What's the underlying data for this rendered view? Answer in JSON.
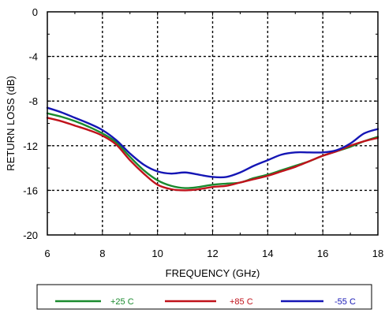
{
  "chart_data": {
    "type": "line",
    "title": "",
    "xlabel": "FREQUENCY (GHz)",
    "ylabel": "RETURN LOSS (dB)",
    "xlim": [
      6,
      18
    ],
    "ylim": [
      -20,
      0
    ],
    "x_ticks": [
      6,
      8,
      10,
      12,
      14,
      16,
      18
    ],
    "y_ticks": [
      0,
      -4,
      -8,
      -12,
      -16,
      -20
    ],
    "grid": true,
    "legend_position": "bottom",
    "series": [
      {
        "name": "+25 C",
        "color": "#1a8a2e",
        "x": [
          6,
          6.5,
          7,
          7.5,
          8,
          8.5,
          9,
          9.5,
          10,
          10.5,
          11,
          11.5,
          12,
          12.5,
          13,
          13.5,
          14,
          14.5,
          15,
          15.5,
          16,
          16.5,
          17,
          17.5,
          18
        ],
        "y": [
          -9.1,
          -9.4,
          -9.8,
          -10.3,
          -10.9,
          -11.7,
          -13.0,
          -14.2,
          -15.1,
          -15.6,
          -15.8,
          -15.7,
          -15.5,
          -15.4,
          -15.3,
          -14.9,
          -14.6,
          -14.2,
          -13.8,
          -13.4,
          -12.9,
          -12.5,
          -12.1,
          -11.6,
          -11.2
        ]
      },
      {
        "name": "+85 C",
        "color": "#c0121b",
        "x": [
          6,
          6.5,
          7,
          7.5,
          8,
          8.5,
          9,
          9.5,
          10,
          10.5,
          11,
          11.5,
          12,
          12.5,
          13,
          13.5,
          14,
          14.5,
          15,
          15.5,
          16,
          16.5,
          17,
          17.5,
          18
        ],
        "y": [
          -9.5,
          -9.8,
          -10.2,
          -10.6,
          -11.1,
          -11.9,
          -13.3,
          -14.5,
          -15.5,
          -15.9,
          -16.0,
          -15.9,
          -15.7,
          -15.6,
          -15.3,
          -15.0,
          -14.7,
          -14.3,
          -13.9,
          -13.4,
          -12.9,
          -12.5,
          -12.0,
          -11.6,
          -11.3
        ]
      },
      {
        "name": "-55 C",
        "color": "#1516b5",
        "x": [
          6,
          6.5,
          7,
          7.5,
          8,
          8.5,
          9,
          9.5,
          10,
          10.5,
          11,
          11.5,
          12,
          12.5,
          13,
          13.5,
          14,
          14.5,
          15,
          15.5,
          16,
          16.5,
          17,
          17.5,
          18
        ],
        "y": [
          -8.6,
          -9.0,
          -9.5,
          -10.0,
          -10.6,
          -11.5,
          -12.7,
          -13.7,
          -14.3,
          -14.5,
          -14.4,
          -14.6,
          -14.8,
          -14.8,
          -14.4,
          -13.8,
          -13.3,
          -12.8,
          -12.6,
          -12.6,
          -12.6,
          -12.4,
          -11.8,
          -10.9,
          -10.5
        ]
      }
    ]
  }
}
